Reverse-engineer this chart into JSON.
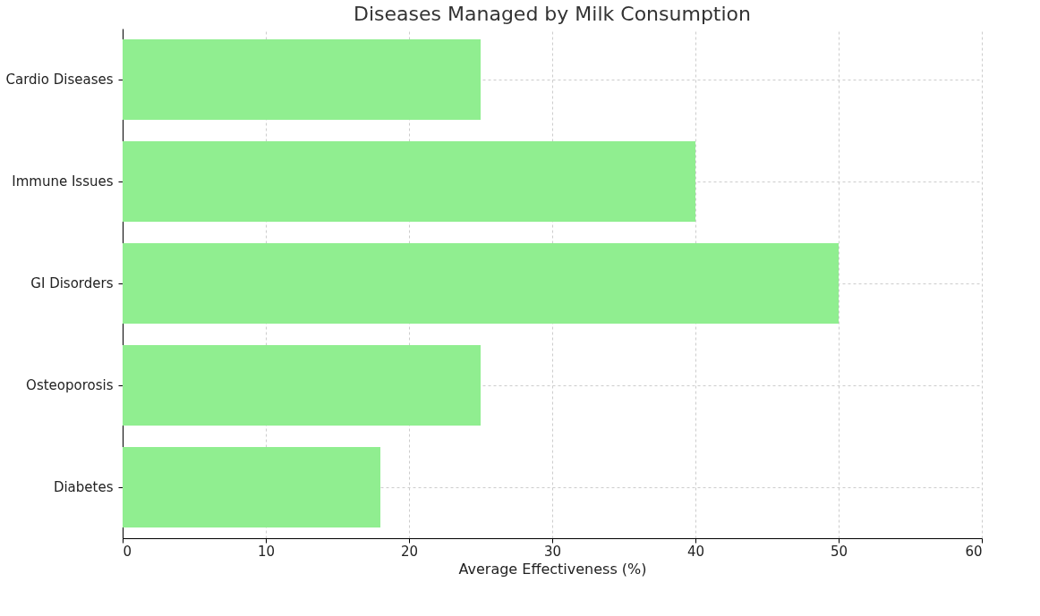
{
  "chart_data": {
    "type": "bar",
    "orientation": "horizontal",
    "title": "Diseases Managed by Milk Consumption",
    "xlabel": "Average Effectiveness (%)",
    "categories": [
      "Cardio Diseases",
      "Immune Issues",
      "GI Disorders",
      "Osteoporosis",
      "Diabetes"
    ],
    "values": [
      25,
      40,
      50,
      25,
      18
    ],
    "color": "#90ee90",
    "xlim": [
      0,
      60
    ],
    "xticks": [
      0,
      10,
      20,
      30,
      40,
      50,
      60
    ],
    "grid": true
  }
}
